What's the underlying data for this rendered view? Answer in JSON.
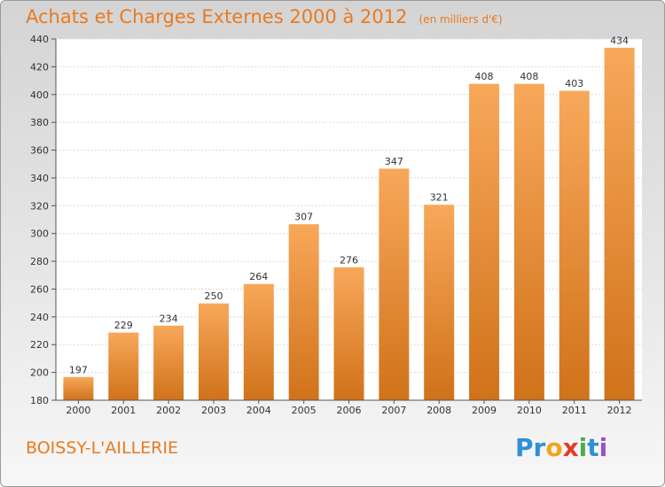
{
  "title": "Achats et Charges Externes 2000 à 2012",
  "subtitle": "(en milliers d'€)",
  "commune": "BOISSY-L'AILLERIE",
  "logo": {
    "letters": [
      "P",
      "r",
      "o",
      "x",
      "i",
      "t",
      "i"
    ],
    "colors": [
      "#2f8fd8",
      "#2f8fd8",
      "#f2a51a",
      "#e23c2a",
      "#4cae4c",
      "#2f8fd8",
      "#9a4fc8"
    ]
  },
  "colors": {
    "accent": "#ea7a20",
    "bar_light": "#f8a85a",
    "bar_dark": "#d0721a"
  },
  "chart_data": {
    "type": "bar",
    "categories": [
      "2000",
      "2001",
      "2002",
      "2003",
      "2004",
      "2005",
      "2006",
      "2007",
      "2008",
      "2009",
      "2010",
      "2011",
      "2012"
    ],
    "values": [
      197,
      229,
      234,
      250,
      264,
      307,
      276,
      347,
      321,
      408,
      408,
      403,
      434
    ],
    "ylim": [
      180,
      440
    ],
    "yticks": [
      180,
      200,
      220,
      240,
      260,
      280,
      300,
      320,
      340,
      360,
      380,
      400,
      420,
      440
    ],
    "grid": true
  }
}
